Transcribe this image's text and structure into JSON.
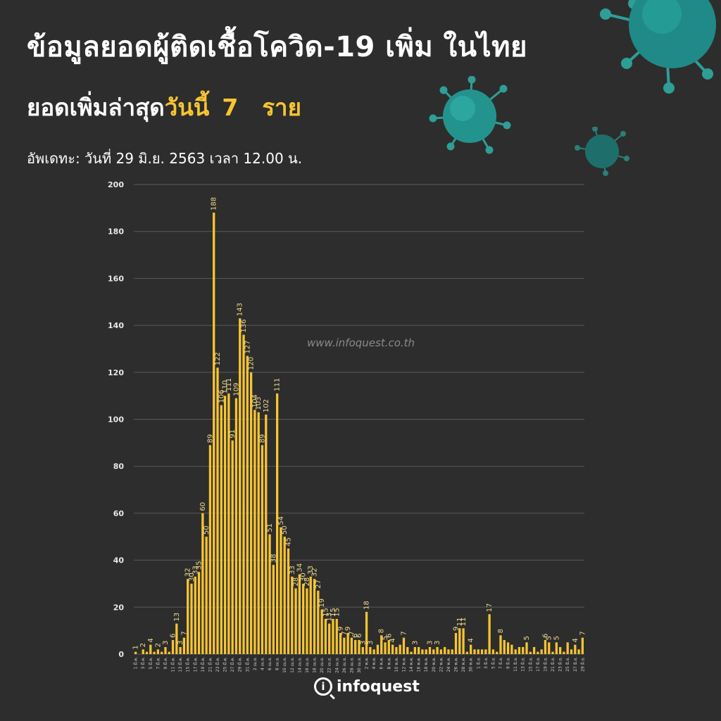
{
  "header": {
    "title": "ข้อมูลยอดผู้ติดเชื้อโควิด-19 เพิ่ม ในไทย",
    "subtitle_prefix": "ยอดเพิ่มล่าสุด",
    "subtitle_highlight": "วันนี้",
    "today_count": "7",
    "unit": "ราย",
    "updated": "อัพเดทะ: วันที่ 29 มิ.ย. 2563 เวลา 12.00 น."
  },
  "watermark": "www.infoquest.co.th",
  "logo": {
    "text": "infoquest"
  },
  "colors": {
    "background": "#2d2d2d",
    "bar": "#f7c530",
    "grid": "#5a5a5a",
    "label": "#f0d98a"
  },
  "chart_data": {
    "type": "bar",
    "ylim": [
      0,
      200
    ],
    "yticks": [
      0,
      20,
      40,
      60,
      80,
      100,
      120,
      140,
      160,
      180,
      200
    ],
    "grid": true,
    "legend": "none",
    "x_labels": [
      "1 มี.ค.",
      "3 มี.ค.",
      "5 มี.ค.",
      "7 มี.ค.",
      "9 มี.ค.",
      "11 มี.ค.",
      "13 มี.ค.",
      "15 มี.ค.",
      "17 มี.ค.",
      "19 มี.ค.",
      "21 มี.ค.",
      "23 มี.ค.",
      "25 มี.ค.",
      "27 มี.ค.",
      "29 มี.ค.",
      "31 มี.ค.",
      "2 เม.ย.",
      "4 เม.ย.",
      "6 เม.ย.",
      "8 เม.ย.",
      "10 เม.ย.",
      "12 เม.ย.",
      "14 เม.ย.",
      "16 เม.ย.",
      "18 เม.ย.",
      "20 เม.ย.",
      "22 เม.ย.",
      "24 เม.ย.",
      "26 เม.ย.",
      "28 เม.ย.",
      "30 เม.ย.",
      "2 พ.ค.",
      "4 พ.ค.",
      "6 พ.ค.",
      "8 พ.ค.",
      "10 พ.ค.",
      "12 พ.ค.",
      "14 พ.ค.",
      "16 พ.ค.",
      "18 พ.ค.",
      "20 พ.ค.",
      "22 พ.ค.",
      "24 พ.ค.",
      "26 พ.ค.",
      "28 พ.ค.",
      "30 พ.ค.",
      "1 มิ.ย.",
      "3 มิ.ย.",
      "5 มิ.ย.",
      "7 มิ.ย.",
      "9 มิ.ย.",
      "11 มิ.ย.",
      "13 มิ.ย.",
      "15 มิ.ย.",
      "17 มิ.ย.",
      "19 มิ.ย.",
      "21 มิ.ย.",
      "23 มิ.ย.",
      "25 มิ.ย.",
      "27 มิ.ย.",
      "29 มิ.ย."
    ],
    "values": [
      1,
      0,
      2,
      1,
      4,
      1,
      2,
      1,
      3,
      1,
      6,
      13,
      3,
      7,
      32,
      30,
      33,
      35,
      60,
      50,
      89,
      188,
      122,
      106,
      110,
      111,
      91,
      109,
      143,
      136,
      127,
      120,
      104,
      103,
      89,
      102,
      51,
      38,
      111,
      54,
      50,
      45,
      33,
      28,
      34,
      30,
      28,
      33,
      32,
      27,
      19,
      15,
      13,
      15,
      15,
      9,
      7,
      9,
      7,
      6,
      6,
      3,
      18,
      3,
      2,
      4,
      8,
      5,
      6,
      4,
      3,
      4,
      7,
      3,
      1,
      3,
      3,
      2,
      2,
      3,
      2,
      3,
      2,
      3,
      2,
      2,
      9,
      11,
      11,
      1,
      4,
      2,
      2,
      2,
      2,
      17,
      2,
      1,
      8,
      6,
      5,
      4,
      2,
      3,
      3,
      5,
      1,
      3,
      1,
      2,
      6,
      5,
      1,
      5,
      3,
      1,
      5,
      2,
      4,
      2,
      7
    ],
    "labels": [
      "1",
      "",
      "2",
      "",
      "4",
      "",
      "2",
      "",
      "3",
      "",
      "6",
      "13",
      "3",
      "7",
      "32",
      "30",
      "33",
      "35",
      "60",
      "50",
      "89",
      "188",
      "122",
      "106",
      "110",
      "111",
      "91",
      "109",
      "143",
      "136",
      "127",
      "120",
      "104",
      "103",
      "89",
      "102",
      "51",
      "38",
      "111",
      "54",
      "50",
      "45",
      "33",
      "28",
      "34",
      "30",
      "28",
      "33",
      "32",
      "27",
      "19",
      "15",
      "13",
      "15",
      "15",
      "9",
      "7",
      "9",
      "7",
      "6",
      "6",
      "3",
      "18",
      "3",
      "",
      "",
      "8",
      "5",
      "6",
      "4",
      "",
      "",
      "7",
      "",
      "",
      "3",
      "",
      "",
      "",
      "3",
      "",
      "3",
      "",
      "",
      "",
      "",
      "9",
      "11",
      "11",
      "",
      "4",
      "",
      "",
      "",
      "",
      "17",
      "",
      "",
      "8",
      "",
      "",
      "",
      "",
      "",
      "",
      "5",
      "",
      "",
      "",
      "",
      "6",
      "5",
      "",
      "5",
      "",
      "",
      "",
      "",
      "4",
      "",
      "7"
    ]
  }
}
